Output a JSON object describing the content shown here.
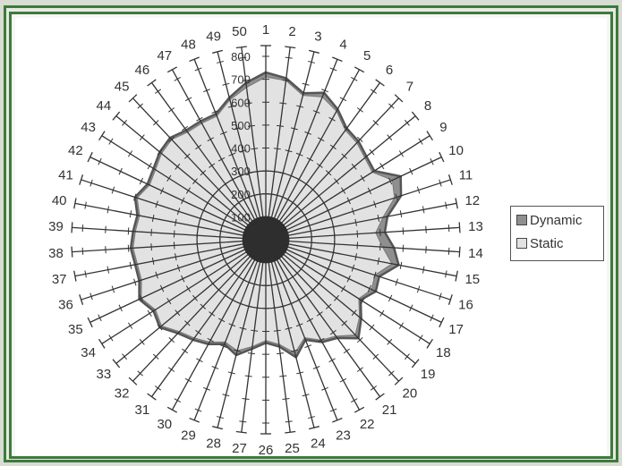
{
  "chart_data": {
    "type": "radar",
    "categories": [
      "1",
      "2",
      "3",
      "4",
      "5",
      "6",
      "7",
      "8",
      "9",
      "10",
      "11",
      "12",
      "13",
      "14",
      "15",
      "16",
      "17",
      "18",
      "19",
      "20",
      "21",
      "22",
      "23",
      "24",
      "25",
      "26",
      "27",
      "28",
      "29",
      "30",
      "31",
      "32",
      "33",
      "34",
      "35",
      "36",
      "37",
      "38",
      "39",
      "40",
      "41",
      "42",
      "43",
      "44",
      "45",
      "46",
      "47",
      "48",
      "49",
      "50"
    ],
    "radial_ticks": [
      "100",
      "200",
      "300",
      "400",
      "500",
      "600",
      "700",
      "800"
    ],
    "rmax": 800,
    "series": [
      {
        "name": "Dynamic",
        "color": "#8f8f8f",
        "values": [
          730,
          710,
          660,
          690,
          650,
          600,
          590,
          570,
          560,
          650,
          620,
          540,
          520,
          560,
          590,
          520,
          530,
          490,
          540,
          590,
          530,
          510,
          470,
          530,
          470,
          450,
          480,
          520,
          490,
          520,
          540,
          560,
          600,
          580,
          610,
          580,
          580,
          590,
          580,
          570,
          600,
          570,
          580,
          600,
          610,
          590,
          590,
          590,
          640,
          690
        ]
      },
      {
        "name": "Static",
        "color": "#e2e2e2",
        "values": [
          710,
          700,
          650,
          670,
          640,
          590,
          580,
          560,
          550,
          610,
          590,
          520,
          480,
          510,
          560,
          500,
          510,
          480,
          530,
          570,
          520,
          500,
          460,
          510,
          460,
          440,
          470,
          500,
          480,
          510,
          530,
          550,
          590,
          570,
          600,
          570,
          570,
          580,
          570,
          560,
          590,
          560,
          570,
          590,
          600,
          580,
          580,
          580,
          630,
          670
        ]
      }
    ],
    "legend_position": "right",
    "grid": true
  },
  "legend": {
    "dynamic_label": "Dynamic",
    "static_label": "Static"
  },
  "colors": {
    "frame": "#3c7a3c",
    "axis": "#333333"
  }
}
